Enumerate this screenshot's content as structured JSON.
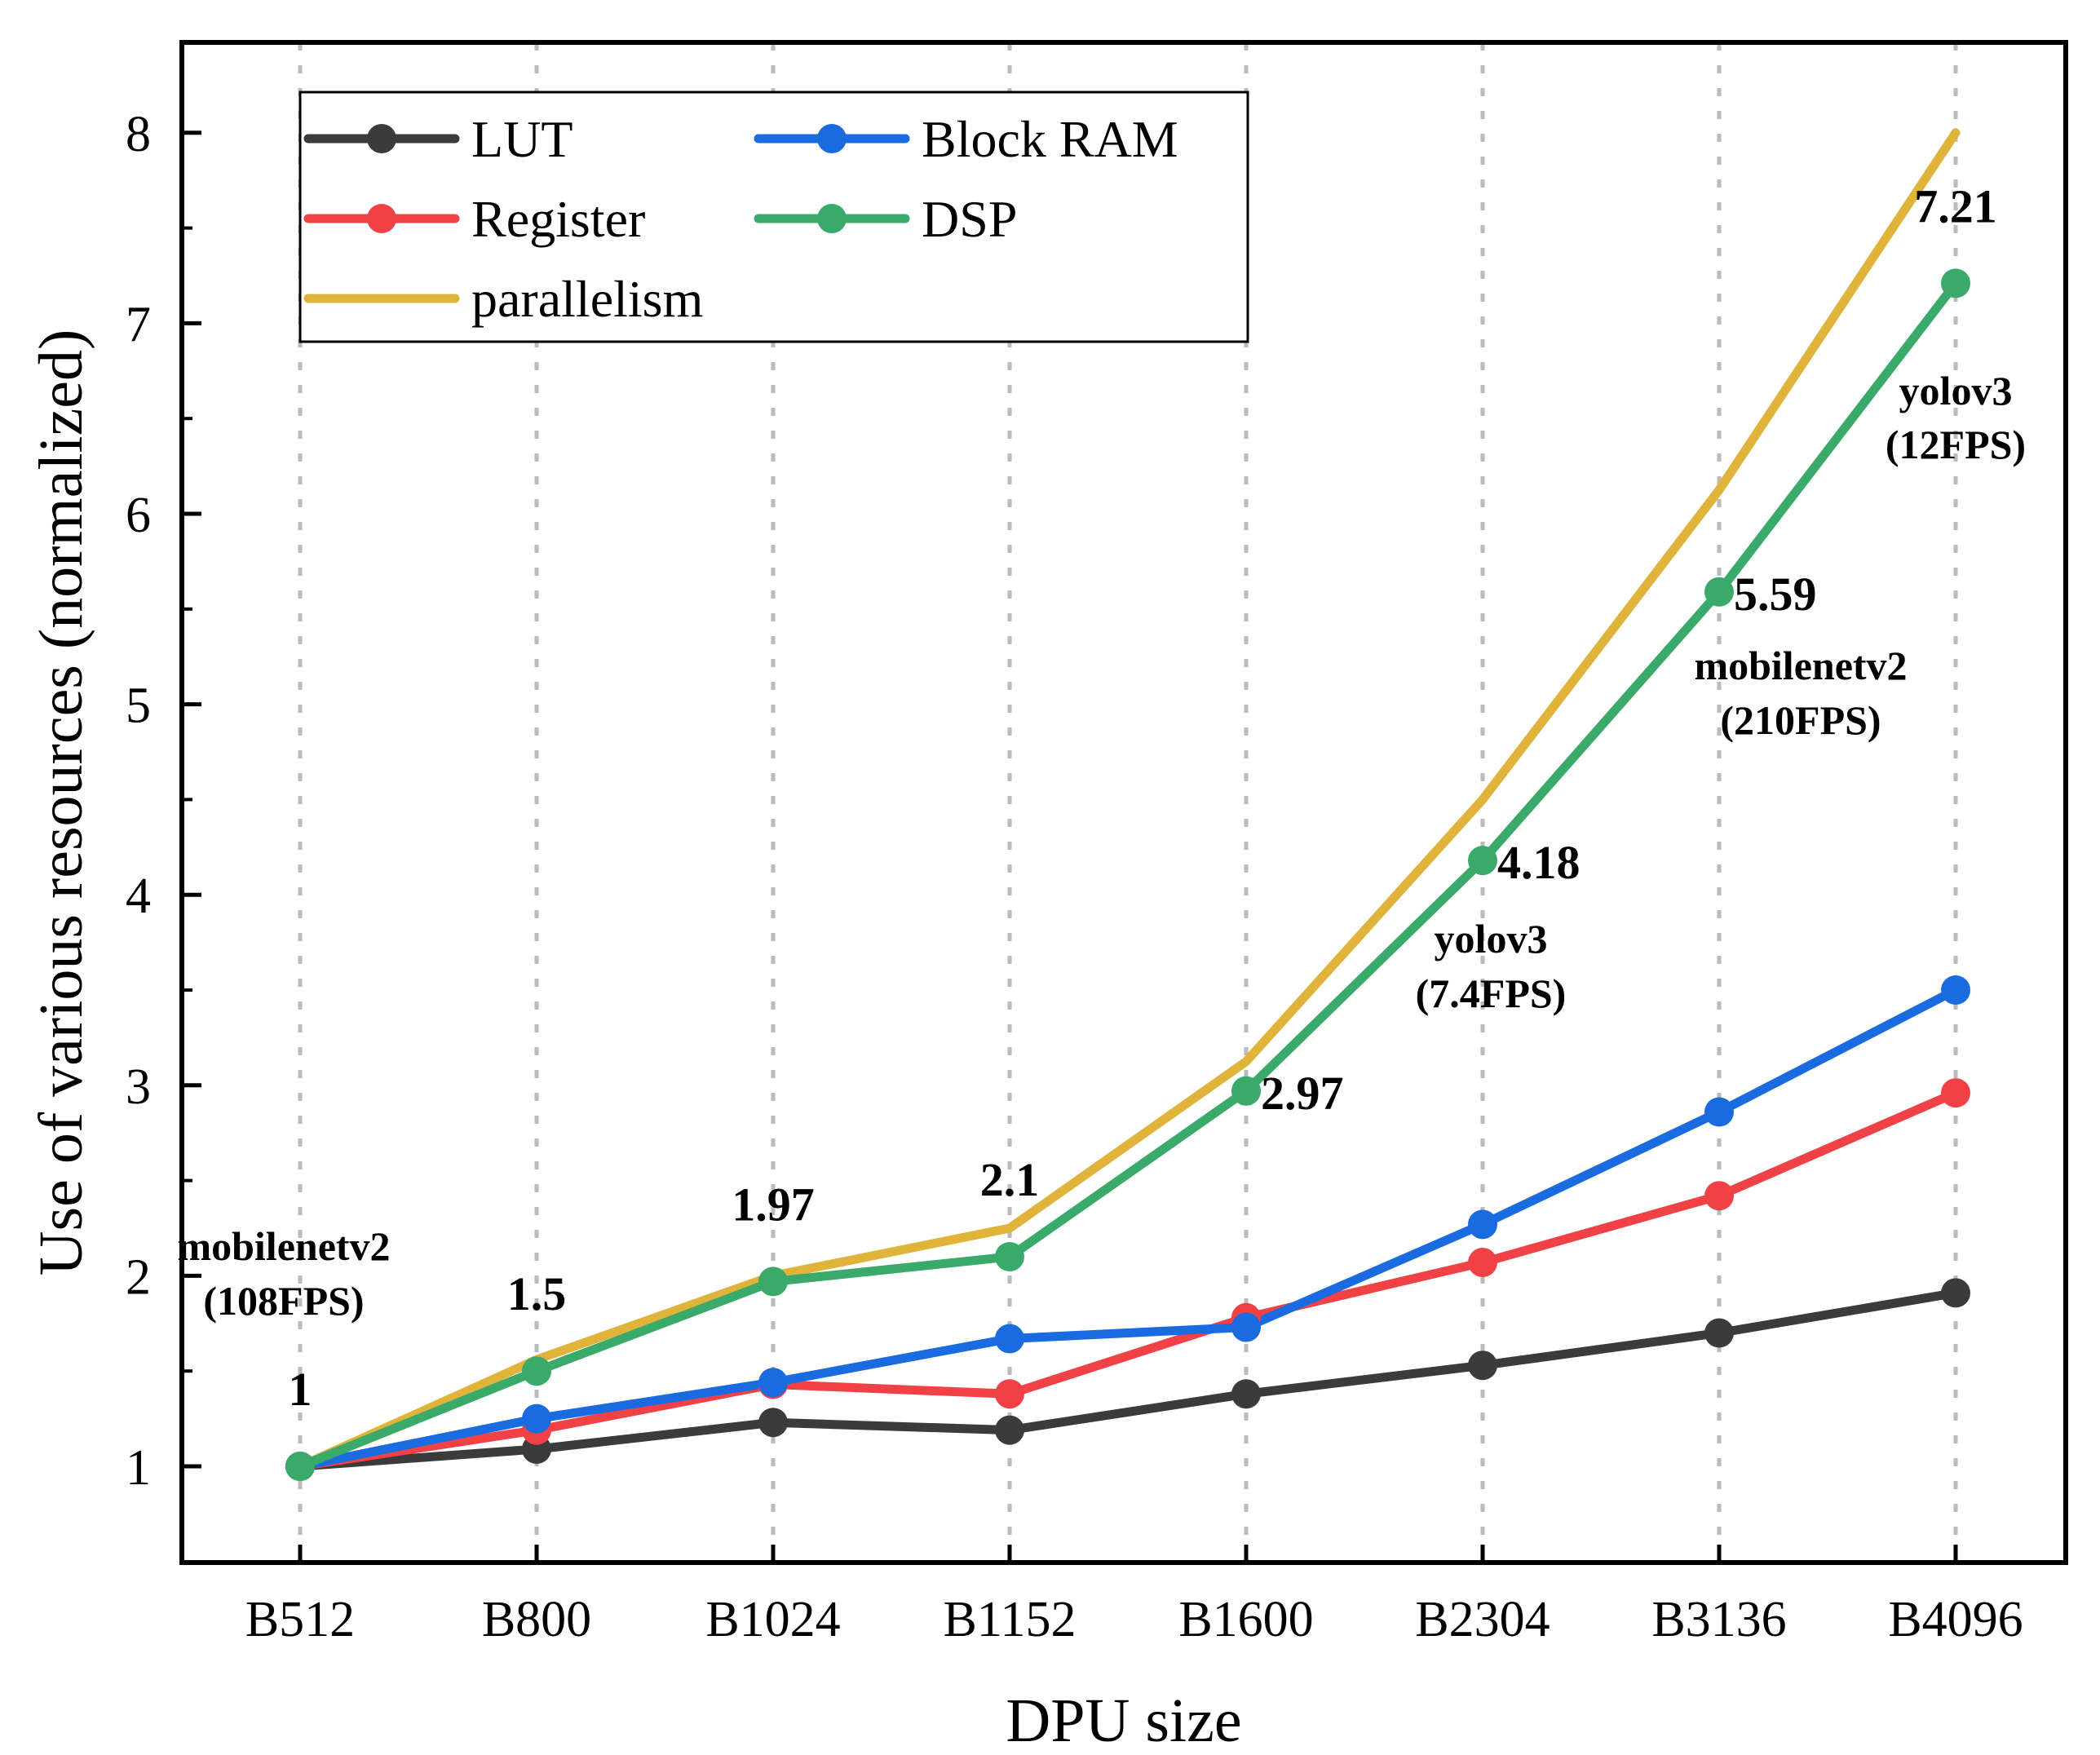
{
  "chart_data": {
    "type": "line",
    "title": "",
    "xlabel": "DPU size",
    "ylabel": "Use of various resources (normalized)",
    "categories": [
      "B512",
      "B800",
      "B1024",
      "B1152",
      "B1600",
      "B2304",
      "B3136",
      "B4096"
    ],
    "ylim": [
      0.5,
      8.5
    ],
    "yticks": [
      1,
      2,
      3,
      4,
      5,
      6,
      7,
      8
    ],
    "grid": "vertical dotted",
    "legend_position": "top-left",
    "series": [
      {
        "name": "parallelism",
        "color": "#e0b43a",
        "markers": false,
        "values": [
          1,
          1.56,
          2,
          2.25,
          3.125,
          4.5,
          6.125,
          8
        ]
      },
      {
        "name": "LUT",
        "color": "#3b3b3b",
        "markers": true,
        "values": [
          1,
          1.09,
          1.23,
          1.19,
          1.38,
          1.53,
          1.7,
          1.91
        ]
      },
      {
        "name": "Register",
        "color": "#f04146",
        "markers": true,
        "values": [
          1,
          1.19,
          1.43,
          1.38,
          1.78,
          2.07,
          2.42,
          2.96
        ]
      },
      {
        "name": "Block RAM",
        "color": "#1a6be0",
        "markers": true,
        "values": [
          1,
          1.25,
          1.44,
          1.67,
          1.73,
          2.27,
          2.86,
          3.5
        ]
      },
      {
        "name": "DSP",
        "color": "#3aaa6a",
        "markers": true,
        "values": [
          1,
          1.5,
          1.97,
          2.1,
          2.97,
          4.18,
          5.59,
          7.21
        ]
      }
    ],
    "legend_order": [
      "LUT",
      "Block RAM",
      "Register",
      "DSP",
      "parallelism"
    ],
    "data_labels": [
      {
        "text": "1",
        "x": "B512",
        "y": 1,
        "anchor": "above"
      },
      {
        "text": "1.5",
        "x": "B800",
        "y": 1.5,
        "anchor": "above"
      },
      {
        "text": "1.97",
        "x": "B1024",
        "y": 1.97,
        "anchor": "above"
      },
      {
        "text": "2.1",
        "x": "B1152",
        "y": 2.1,
        "anchor": "above"
      },
      {
        "text": "2.97",
        "x": "B1600",
        "y": 2.97,
        "anchor": "right"
      },
      {
        "text": "4.18",
        "x": "B2304",
        "y": 4.18,
        "anchor": "right"
      },
      {
        "text": "5.59",
        "x": "B3136",
        "y": 5.59,
        "anchor": "right"
      },
      {
        "text": "7.21",
        "x": "B4096",
        "y": 7.21,
        "anchor": "above"
      }
    ],
    "annotations": [
      {
        "lines": [
          "mobilenetv2",
          "(108FPS)"
        ],
        "color": "#f02020",
        "near": "B512"
      },
      {
        "lines": [
          "yolov3",
          "(7.4FPS)"
        ],
        "color": "#2050f0",
        "near": "B2304"
      },
      {
        "lines": [
          "mobilenetv2",
          "(210FPS)"
        ],
        "color": "#f02020",
        "near": "B3136"
      },
      {
        "lines": [
          "yolov3",
          "(12FPS)"
        ],
        "color": "#2050f0",
        "near": "B4096"
      }
    ]
  }
}
